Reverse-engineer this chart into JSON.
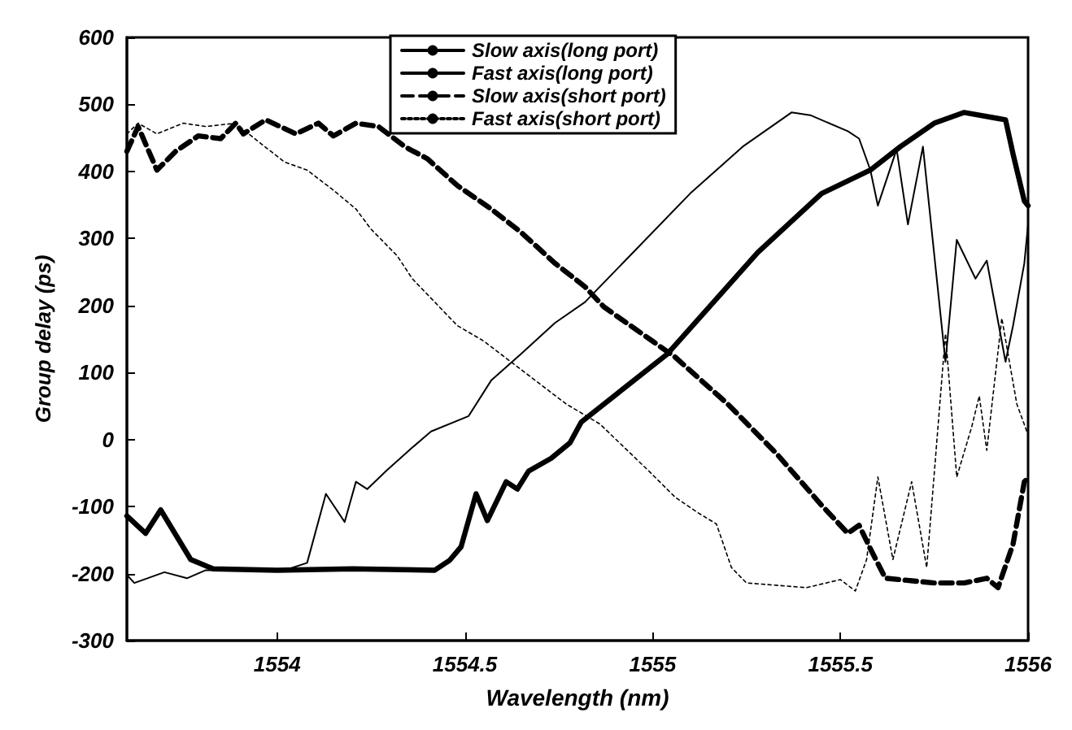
{
  "chart_data": {
    "type": "line",
    "xlabel": "Wavelength (nm)",
    "ylabel": "Group delay (ps)",
    "xlim": [
      1553.6,
      1556
    ],
    "xticks": [
      1554,
      1554.5,
      1555,
      1555.5,
      1556
    ],
    "ylim": [
      -300,
      600
    ],
    "yticks": [
      -300,
      -200,
      -100,
      0,
      100,
      200,
      300,
      400,
      500,
      600
    ],
    "grid": false,
    "legend": "top",
    "marker": "none",
    "series": [
      {
        "name": "Slow axis(long port)",
        "color": "#000000",
        "line_style": "solid",
        "x": [
          1553.6,
          1553.65,
          1553.69,
          1553.77,
          1553.83,
          1554,
          1554.2,
          1554.42,
          1554.46,
          1554.49,
          1554.53,
          1554.56,
          1554.61,
          1554.64,
          1554.67,
          1554.73,
          1554.78,
          1554.81,
          1555.04,
          1555.28,
          1555.45,
          1555.58,
          1555.66,
          1555.75,
          1555.83,
          1555.92,
          1555.94,
          1555.96,
          1555.99,
          1556
        ],
        "values": [
          -114,
          -140,
          -105,
          -179,
          -193,
          -195,
          -193,
          -195,
          -180,
          -160,
          -81,
          -121,
          -63,
          -74,
          -47,
          -28,
          -5,
          26,
          128,
          279,
          367,
          402,
          437,
          472,
          488,
          479,
          477,
          426,
          356,
          349
        ]
      },
      {
        "name": "Fast axis(long port)",
        "color": "#000000",
        "line_style": "solid",
        "x": [
          1553.6,
          1553.62,
          1553.7,
          1553.76,
          1553.81,
          1554.02,
          1554.08,
          1554.13,
          1554.18,
          1554.21,
          1554.24,
          1554.29,
          1554.36,
          1554.41,
          1554.51,
          1554.57,
          1554.65,
          1554.74,
          1554.82,
          1555.1,
          1555.24,
          1555.37,
          1555.42,
          1555.52,
          1555.55,
          1555.58,
          1555.6,
          1555.65,
          1555.68,
          1555.72,
          1555.78,
          1555.81,
          1555.86,
          1555.89,
          1555.94,
          1555.96,
          1555.99,
          1556
        ],
        "values": [
          -202,
          -214,
          -198,
          -207,
          -195,
          -195,
          -184,
          -81,
          -123,
          -63,
          -74,
          -47,
          -12,
          12,
          35,
          88,
          128,
          174,
          205,
          367,
          437,
          488,
          484,
          460,
          449,
          402,
          349,
          433,
          321,
          437,
          116,
          298,
          240,
          267,
          116,
          170,
          263,
          321
        ]
      },
      {
        "name": "Slow axis(short port)",
        "color": "#000000",
        "line_style": "dashed",
        "x": [
          1553.6,
          1553.63,
          1553.68,
          1553.73,
          1553.79,
          1553.85,
          1553.89,
          1553.91,
          1553.97,
          1554.05,
          1554.11,
          1554.15,
          1554.21,
          1554.27,
          1554.34,
          1554.4,
          1554.48,
          1554.57,
          1554.65,
          1554.74,
          1554.82,
          1554.87,
          1555.06,
          1555.2,
          1555.33,
          1555.45,
          1555.52,
          1555.55,
          1555.58,
          1555.62,
          1555.75,
          1555.83,
          1555.89,
          1555.92,
          1555.96,
          1555.99,
          1556
        ],
        "values": [
          430,
          467,
          402,
          430,
          453,
          449,
          472,
          456,
          477,
          456,
          472,
          453,
          472,
          467,
          437,
          419,
          379,
          344,
          309,
          263,
          228,
          198,
          123,
          53,
          -21,
          -98,
          -140,
          -128,
          -163,
          -207,
          -214,
          -214,
          -207,
          -221,
          -156,
          -63,
          -58
        ]
      },
      {
        "name": "Fast axis(short port)",
        "color": "#000000",
        "line_style": "dotted",
        "x": [
          1553.6,
          1553.63,
          1553.68,
          1553.75,
          1553.81,
          1553.89,
          1553.94,
          1554.02,
          1554.08,
          1554.15,
          1554.21,
          1554.25,
          1554.32,
          1554.36,
          1554.42,
          1554.48,
          1554.55,
          1554.77,
          1554.86,
          1554.99,
          1555.06,
          1555.12,
          1555.17,
          1555.21,
          1555.25,
          1555.41,
          1555.5,
          1555.54,
          1555.57,
          1555.6,
          1555.64,
          1555.69,
          1555.73,
          1555.78,
          1555.81,
          1555.85,
          1555.87,
          1555.89,
          1555.93,
          1555.97,
          1556
        ],
        "values": [
          456,
          472,
          456,
          472,
          467,
          472,
          449,
          414,
          402,
          372,
          344,
          314,
          274,
          240,
          205,
          170,
          147,
          53,
          23,
          -47,
          -86,
          -109,
          -126,
          -191,
          -214,
          -221,
          -209,
          -226,
          -179,
          -56,
          -179,
          -63,
          -191,
          158,
          -56,
          19,
          65,
          -16,
          181,
          53,
          7
        ]
      }
    ]
  }
}
